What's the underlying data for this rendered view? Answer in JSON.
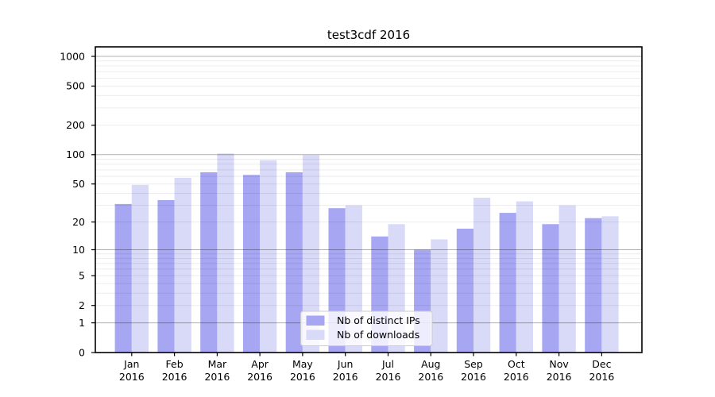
{
  "chart_data": {
    "type": "bar",
    "title": "test3cdf 2016",
    "scale": "log1p",
    "categories": [
      "Jan",
      "Feb",
      "Mar",
      "Apr",
      "May",
      "Jun",
      "Jul",
      "Aug",
      "Sep",
      "Oct",
      "Nov",
      "Dec"
    ],
    "year": "2016",
    "series": [
      {
        "name": "Nb of distinct IPs",
        "color": "#a6a6f2",
        "values": [
          31,
          34,
          66,
          62,
          66,
          28,
          14,
          10,
          17,
          25,
          19,
          22
        ]
      },
      {
        "name": "Nb of downloads",
        "color": "#d9d9f8",
        "values": [
          49,
          58,
          103,
          88,
          99,
          30,
          19,
          13,
          36,
          33,
          30,
          23
        ]
      }
    ],
    "y_ticks": [
      1000,
      500,
      200,
      100,
      50,
      20,
      10,
      5,
      2,
      1,
      0
    ],
    "ylim": [
      0,
      1000
    ],
    "xlabel": "",
    "ylabel": "",
    "grid": "on",
    "major_grid_at": [
      1,
      10,
      100,
      1000
    ],
    "legend_position": "lower center inside plot"
  }
}
